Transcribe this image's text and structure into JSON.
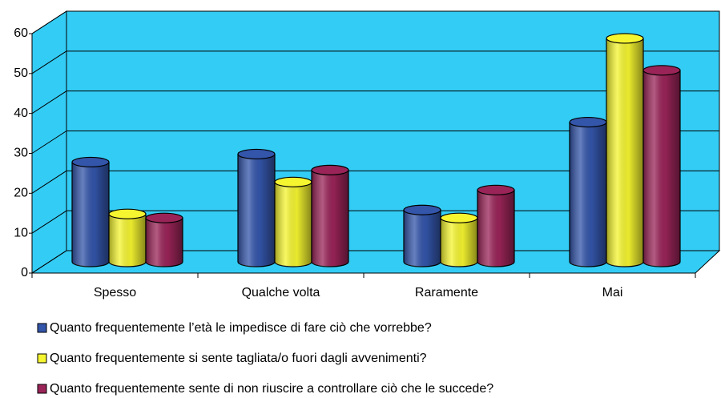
{
  "chart_data": {
    "type": "bar3d",
    "categories": [
      "Spesso",
      "Qualche volta",
      "Raramente",
      "Mai"
    ],
    "series": [
      {
        "name": "Quanto frequentemente l’età le impedisce di fare ciò che vorrebbe?",
        "color": "#3355aa",
        "values": [
          25,
          27,
          13,
          35
        ]
      },
      {
        "name": "Quanto frequentemente si sente tagliata/o fuori dagli avvenimenti?",
        "color": "#f5f530",
        "values": [
          12,
          20,
          11,
          56
        ]
      },
      {
        "name": "Quanto frequentemente sente di non riuscire a controllare ciò che le succede?",
        "color": "#9a2458",
        "values": [
          11,
          23,
          18,
          48
        ]
      }
    ],
    "ylim": [
      0,
      60
    ],
    "yticks": [
      0,
      10,
      20,
      30,
      40,
      50,
      60
    ],
    "grid": true,
    "legend": "bottom"
  }
}
